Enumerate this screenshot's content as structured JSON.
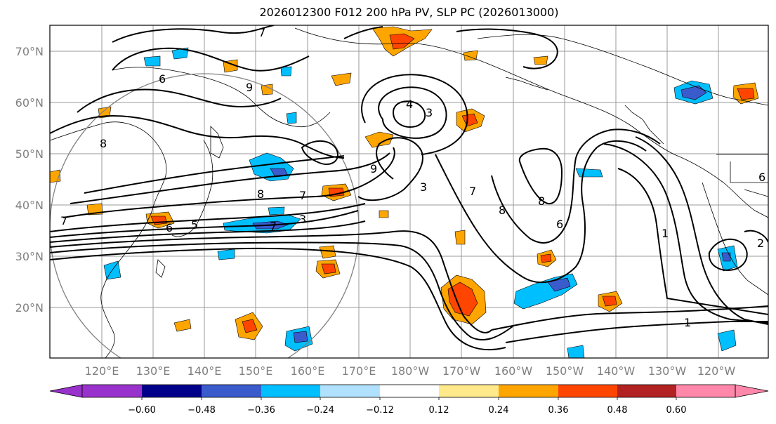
{
  "title": "2026012300 F012 200 hPa PV, SLP PC (2026013000)",
  "lat_labels": [
    "70°N",
    "60°N",
    "50°N",
    "40°N",
    "30°N",
    "20°N"
  ],
  "lon_labels": [
    "120°E",
    "130°E",
    "140°E",
    "150°E",
    "160°E",
    "170°E",
    "180°W",
    "170°W",
    "160°W",
    "150°W",
    "140°W",
    "130°W",
    "120°W"
  ],
  "colorbar": {
    "colors": [
      "#9932cc",
      "#00008b",
      "#3a5bcc",
      "#00bfff",
      "#b0e2ff",
      "#ffffff",
      "#ffe98a",
      "#ffa500",
      "#ff4500",
      "#b22222",
      "#ff88aa"
    ],
    "ticks": [
      "−0.60",
      "−0.48",
      "−0.36",
      "−0.24",
      "−0.12",
      "0.12",
      "0.24",
      "0.36",
      "0.48",
      "0.60"
    ]
  },
  "contour_labels": [
    "7",
    "6",
    "9",
    "8",
    "4",
    "3",
    "9",
    "3",
    "7",
    "8",
    "8",
    "6",
    "1",
    "1",
    "7",
    "6",
    "5",
    "8",
    "7",
    "3",
    "7",
    "6",
    "2"
  ]
}
